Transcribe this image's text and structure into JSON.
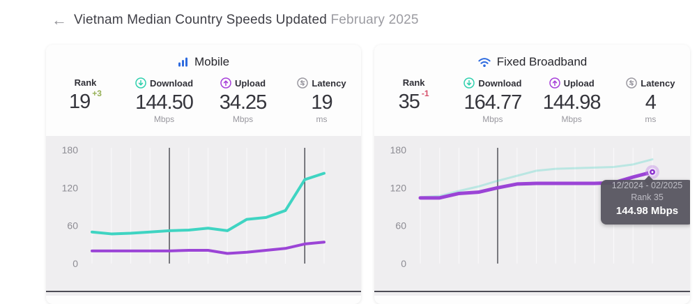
{
  "page": {
    "title_main": "Vietnam Median Country Speeds Updated",
    "title_period": "February 2025",
    "back_icon": "left-arrow-icon"
  },
  "colors": {
    "brand_blue": "#2e6bdf",
    "download_teal": "#3fd4c2",
    "upload_purple": "#9b44d6",
    "delta_up_green": "#96b056",
    "delta_down_red": "#d6506b",
    "tooltip_bg": "#585661",
    "chart_bg": "#efeef0",
    "annotation_line": "#46454d"
  },
  "cards": [
    {
      "title": "Mobile",
      "icon": "mobile-signal-bars-icon",
      "stats": [
        {
          "label": "Rank",
          "value": "19",
          "delta": "+3",
          "delta_dir": "up",
          "unit": ""
        },
        {
          "label": "Download",
          "value": "144.50",
          "unit": "Mbps",
          "icon": "download-circle-icon"
        },
        {
          "label": "Upload",
          "value": "34.25",
          "unit": "Mbps",
          "icon": "upload-circle-icon"
        },
        {
          "label": "Latency",
          "value": "19",
          "unit": "ms",
          "icon": "latency-circle-icon"
        }
      ],
      "chart": {
        "type": "line",
        "num_points": 13,
        "x_labels_visible": false,
        "yticks": [
          180,
          120,
          60,
          0
        ],
        "ylim": [
          0,
          180
        ],
        "grid": "vertical",
        "annotation_line_indices": [
          4,
          11
        ],
        "series": [
          {
            "name": "Download",
            "color": "#3fd4c2",
            "width": 4,
            "opacity": 1,
            "values": [
              50,
              47,
              48,
              50,
              52,
              53,
              56,
              52,
              70,
              73,
              84,
              133,
              143
            ]
          },
          {
            "name": "Upload",
            "color": "#9b44d6",
            "width": 4,
            "opacity": 1,
            "values": [
              20,
              20,
              20,
              20,
              20,
              21,
              21,
              16,
              18,
              21,
              24,
              31,
              34
            ]
          }
        ]
      }
    },
    {
      "title": "Fixed Broadband",
      "icon": "wifi-icon",
      "stats": [
        {
          "label": "Rank",
          "value": "35",
          "delta": "-1",
          "delta_dir": "down",
          "unit": ""
        },
        {
          "label": "Download",
          "value": "164.77",
          "unit": "Mbps",
          "icon": "download-circle-icon"
        },
        {
          "label": "Upload",
          "value": "144.98",
          "unit": "Mbps",
          "icon": "upload-circle-icon"
        },
        {
          "label": "Latency",
          "value": "4",
          "unit": "ms",
          "icon": "latency-circle-icon"
        }
      ],
      "chart": {
        "type": "line",
        "num_points": 13,
        "x_labels_visible": false,
        "yticks": [
          180,
          120,
          60,
          0
        ],
        "ylim": [
          0,
          180
        ],
        "grid": "vertical",
        "annotation_line_indices": [
          4
        ],
        "series": [
          {
            "name": "Download",
            "color": "#3fd4c2",
            "width": 3,
            "opacity": 0.3,
            "values": [
              105,
              107,
              115,
              122,
              131,
              139,
              147,
              150,
              151,
              152,
              153,
              157,
              165
            ]
          },
          {
            "name": "Upload",
            "color": "#9b44d6",
            "width": 5,
            "opacity": 1,
            "values": [
              104,
              104,
              111,
              113,
              120,
              126,
              127,
              127,
              127,
              127,
              128,
              137,
              145
            ]
          }
        ],
        "marker": {
          "series": "Upload",
          "index": 12,
          "color": "#8d35cf"
        }
      }
    }
  ],
  "tooltip": {
    "period": "12/2024 - 02/2025",
    "rank": "Rank 35",
    "value": "144.98 Mbps"
  }
}
